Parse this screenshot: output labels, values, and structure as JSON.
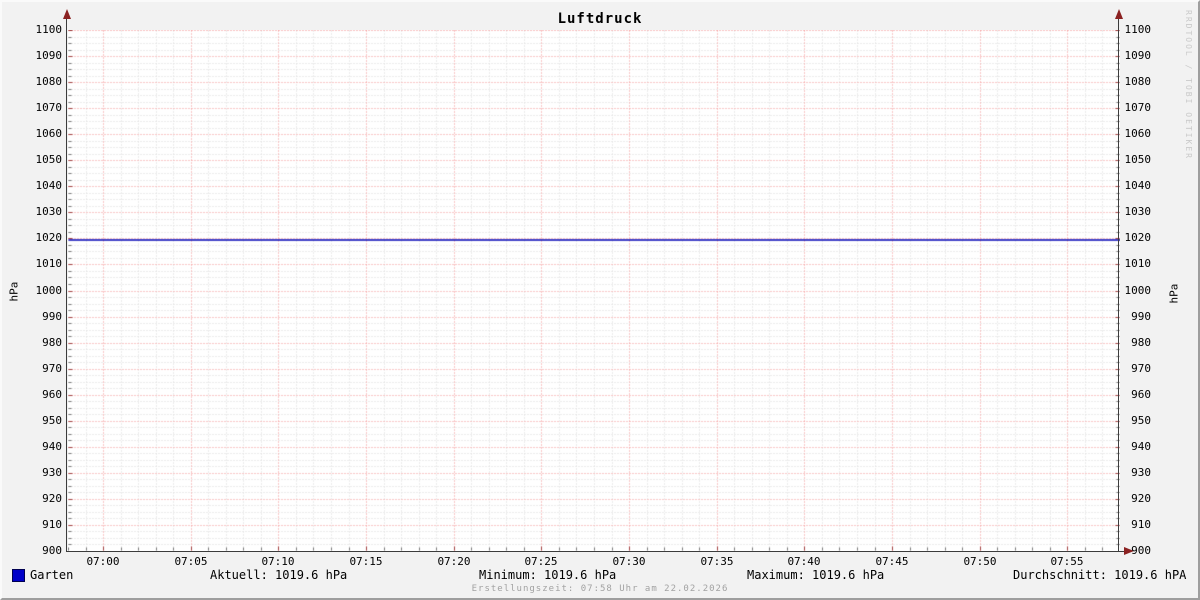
{
  "title": "Luftdruck",
  "watermark": "RRDTOOL / TOBI OETIKER",
  "footer": "Erstellungszeit: 07:58 Uhr am 22.02.2026",
  "axes": {
    "y_label_left": "hPa",
    "y_label_right": "hPa",
    "y_ticks": [
      "900",
      "910",
      "920",
      "930",
      "940",
      "950",
      "960",
      "970",
      "980",
      "990",
      "1000",
      "1010",
      "1020",
      "1030",
      "1040",
      "1050",
      "1060",
      "1070",
      "1080",
      "1090",
      "1100"
    ],
    "x_ticks": [
      "07:00",
      "07:05",
      "07:10",
      "07:15",
      "07:20",
      "07:25",
      "07:30",
      "07:35",
      "07:40",
      "07:45",
      "07:50",
      "07:55"
    ]
  },
  "legend": {
    "series_label": "Garten",
    "aktuell": "Aktuell: 1019.6 hPa",
    "minimum": "Minimum: 1019.6 hPa",
    "maximum": "Maximum: 1019.6 hPa",
    "durchschnitt": "Durchschnitt: 1019.6 hPA"
  },
  "colors": {
    "background": "#f2f2f2",
    "plot_background": "#ffffff",
    "major_grid": "#f28f8f",
    "minor_grid": "#d9d9d9",
    "axis": "#3c3c3c",
    "arrow": "#8b2222",
    "series": "#0000b4",
    "legend_swatch": "#0000c8"
  },
  "chart_data": {
    "type": "line",
    "title": "Luftdruck",
    "xlabel": "",
    "ylabel": "hPa",
    "ylim": [
      900,
      1100
    ],
    "y_major_step": 10,
    "y_minor_step": 2.5,
    "x_start": "06:58",
    "x_end": "07:58",
    "x_major_step_min": 5,
    "x_minor_step_min": 1,
    "grid": true,
    "legend_position": "bottom",
    "series": [
      {
        "name": "Garten",
        "color": "#0000b4",
        "unit": "hPa",
        "x": [
          "06:58",
          "07:58"
        ],
        "y": [
          1019.6,
          1019.6
        ],
        "constant_value": 1019.6,
        "stats": {
          "aktuell": 1019.6,
          "minimum": 1019.6,
          "maximum": 1019.6,
          "durchschnitt": 1019.6
        }
      }
    ]
  }
}
